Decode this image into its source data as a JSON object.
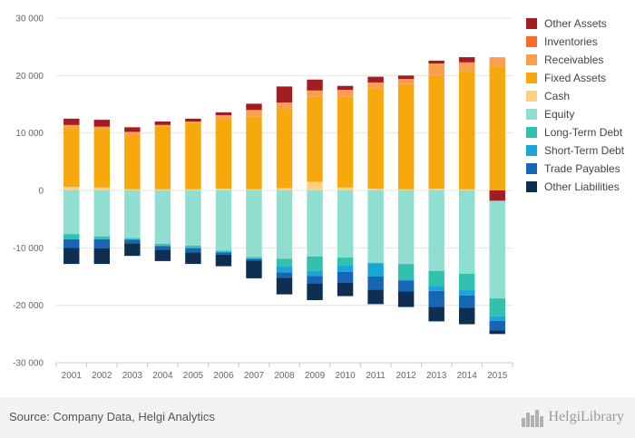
{
  "chart_data": {
    "type": "bar",
    "stacked": true,
    "title": "",
    "xlabel": "",
    "ylabel": "",
    "ylim": [
      -30000,
      30000
    ],
    "y_ticks": [
      30000,
      20000,
      10000,
      0,
      -10000,
      -20000,
      -30000
    ],
    "y_tick_labels": [
      "30 000",
      "20 000",
      "10 000",
      "0",
      "-10 000",
      "-20 000",
      "-30 000"
    ],
    "grid": "horizontal",
    "legend_position": "right",
    "categories": [
      "2001",
      "2002",
      "2003",
      "2004",
      "2005",
      "2006",
      "2007",
      "2008",
      "2009",
      "2010",
      "2011",
      "2012",
      "2013",
      "2014",
      "2015"
    ],
    "series": [
      {
        "name": "Other Assets",
        "color": "#a31c22",
        "values": [
          1100,
          1200,
          800,
          600,
          500,
          500,
          1100,
          2800,
          1900,
          700,
          1000,
          600,
          500,
          900,
          0
        ]
      },
      {
        "name": "Inventories",
        "color": "#f96a2e",
        "values": [
          0,
          0,
          0,
          0,
          0,
          0,
          0,
          0,
          0,
          0,
          0,
          0,
          0,
          0,
          0
        ]
      },
      {
        "name": "Receivables",
        "color": "#fb9e50",
        "values": [
          600,
          400,
          500,
          300,
          300,
          700,
          1100,
          1100,
          1100,
          1200,
          1000,
          900,
          2000,
          1500,
          1600
        ]
      },
      {
        "name": "Fixed Assets",
        "color": "#f7a80d",
        "values": [
          10200,
          10200,
          9500,
          10900,
          11500,
          12100,
          12700,
          13800,
          14800,
          15800,
          17500,
          18300,
          19800,
          20600,
          21600
        ]
      },
      {
        "name": "Cash",
        "color": "#fdd17f",
        "values": [
          600,
          500,
          200,
          200,
          200,
          300,
          200,
          400,
          1500,
          500,
          300,
          200,
          300,
          200,
          0
        ]
      },
      {
        "name": "Equity",
        "color": "#8fded0",
        "values": [
          -7600,
          -8000,
          -8300,
          -9300,
          -9600,
          -10500,
          -11600,
          -11900,
          -11500,
          -11700,
          -12600,
          -12800,
          -14000,
          -14500,
          -17000
        ]
      },
      {
        "name": "Long-Term Debt",
        "color": "#33c1af",
        "values": [
          -800,
          -400,
          -200,
          -300,
          -300,
          -200,
          -200,
          -1300,
          -2500,
          -1300,
          -100,
          -2700,
          -2600,
          -2800,
          -3100
        ]
      },
      {
        "name": "Short-Term Debt",
        "color": "#1aa6d8",
        "values": [
          -100,
          -100,
          -100,
          -100,
          -200,
          -100,
          -200,
          -1100,
          -900,
          -1200,
          -2300,
          -200,
          -900,
          -1000,
          -800
        ]
      },
      {
        "name": "Trade Payables",
        "color": "#1666b5",
        "values": [
          -1500,
          -1600,
          -600,
          -600,
          -700,
          -400,
          -200,
          -900,
          -1300,
          -1900,
          -2300,
          -1900,
          -2800,
          -2100,
          -1700
        ]
      },
      {
        "name": "Other Liabilities",
        "color": "#0e2f52",
        "values": [
          -2800,
          -2700,
          -2200,
          -2000,
          -2000,
          -2000,
          -3100,
          -2900,
          -2900,
          -2300,
          -2500,
          -2700,
          -2500,
          -2900,
          -600
        ]
      }
    ],
    "neg_adjust": [
      0,
      0,
      0,
      0,
      0,
      0,
      0,
      0,
      0,
      0,
      0,
      0,
      0,
      0,
      -1800
    ]
  },
  "source_text": "Source: Company Data, Helgi Analytics",
  "brand": {
    "name": "HelgiLibrary",
    "logo_icon": "city-skyline-icon"
  }
}
